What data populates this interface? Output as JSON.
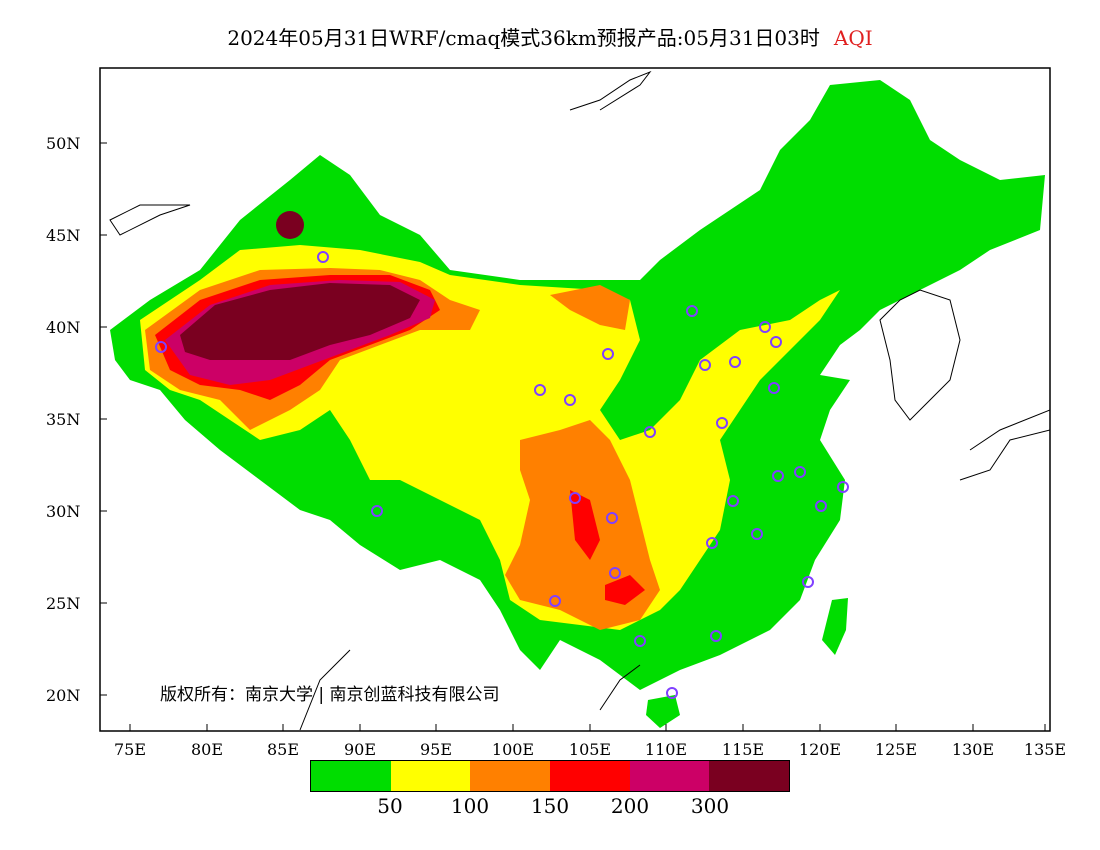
{
  "title": {
    "text": "2024年05月31日WRF/cmaq模式36km预报产品:05月31日03时",
    "variable": "AQI",
    "variable_color": "#e02020"
  },
  "y_axis": {
    "ticks": [
      "50N",
      "45N",
      "40N",
      "35N",
      "30N",
      "25N",
      "20N"
    ]
  },
  "x_axis": {
    "ticks": [
      "75E",
      "80E",
      "85E",
      "90E",
      "95E",
      "100E",
      "105E",
      "110E",
      "115E",
      "120E",
      "125E",
      "130E",
      "135E"
    ]
  },
  "copyright": "版权所有：南京大学 | 南京创蓝科技有限公司",
  "legend": {
    "colors": [
      "#00dd00",
      "#ffff00",
      "#ff8000",
      "#ff0000",
      "#cc0066",
      "#7a0020"
    ],
    "labels": [
      "50",
      "100",
      "150",
      "200",
      "300"
    ]
  },
  "map": {
    "station_marker_color": "#8040ff",
    "water_color": "#ffffff"
  }
}
